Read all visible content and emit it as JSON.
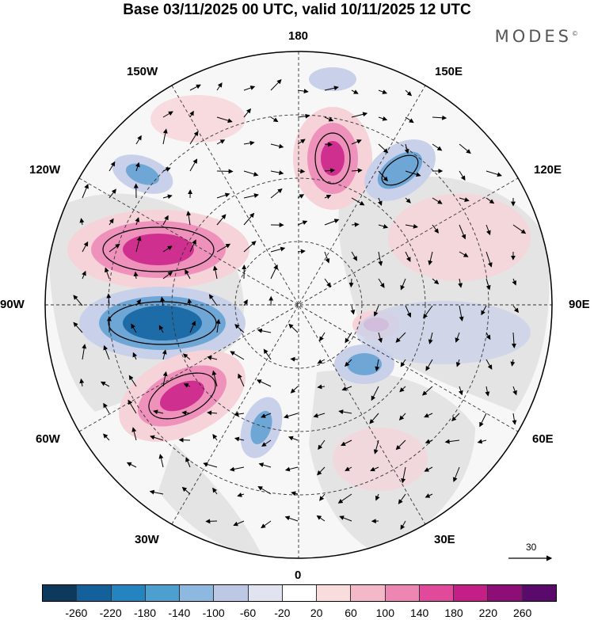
{
  "title": "Base 03/11/2025 00 UTC, valid 10/11/2025 12 UTC",
  "brand": "MODES",
  "brand_mark": "©",
  "lon_labels": {
    "top": "180",
    "bottom": "0",
    "left": "90W",
    "right": "90E",
    "upper_left": "150W",
    "upper_left2": "120W",
    "lower_left": "60W",
    "lower_left2": "30W",
    "upper_right": "150E",
    "upper_right2": "120E",
    "lower_right": "60E",
    "lower_right2": "30E"
  },
  "reference_vector": "30",
  "colorbar": {
    "ticks": [
      "-260",
      "-220",
      "-180",
      "-140",
      "-100",
      "-60",
      "-20",
      "20",
      "60",
      "100",
      "140",
      "180",
      "220",
      "260"
    ],
    "colors": [
      "#0d3a5c",
      "#13609a",
      "#2484bf",
      "#4d9fd0",
      "#8db8df",
      "#bdc8e4",
      "#e2e3f0",
      "#ffffff",
      "#f9dcdc",
      "#f4b8c8",
      "#ee86b4",
      "#e14a9b",
      "#c41f86",
      "#8e0e77",
      "#5a0a6b"
    ]
  },
  "anomaly_colors": {
    "neg_strong": "#1d6ca8",
    "neg_mid": "#6ea7d6",
    "neg_light": "#c8d0ea",
    "pos_light": "#f6d3d8",
    "pos_mid": "#ee92bb",
    "pos_strong": "#cf2f8f",
    "land": "#e6e6e6"
  }
}
